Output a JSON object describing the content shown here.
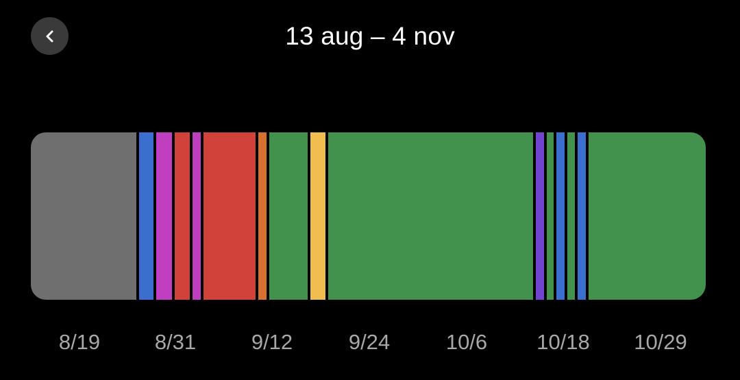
{
  "header": {
    "title": "13 aug – 4 nov",
    "back_icon": "chevron-left-icon"
  },
  "timeline": {
    "segments": [
      {
        "color": "#6f6f6f",
        "start": 0.0,
        "end": 0.156
      },
      {
        "color": "#3a6fd0",
        "start": 0.16,
        "end": 0.182
      },
      {
        "color": "#c03fc0",
        "start": 0.186,
        "end": 0.209
      },
      {
        "color": "#d0423a",
        "start": 0.213,
        "end": 0.236
      },
      {
        "color": "#c03fc0",
        "start": 0.24,
        "end": 0.252
      },
      {
        "color": "#d0423a",
        "start": 0.256,
        "end": 0.333
      },
      {
        "color": "#d7712f",
        "start": 0.337,
        "end": 0.349
      },
      {
        "color": "#42914c",
        "start": 0.353,
        "end": 0.41
      },
      {
        "color": "#efbe4e",
        "start": 0.414,
        "end": 0.437
      },
      {
        "color": "#42914c",
        "start": 0.441,
        "end": 0.744
      },
      {
        "color": "#7144d0",
        "start": 0.748,
        "end": 0.76
      },
      {
        "color": "#42914c",
        "start": 0.764,
        "end": 0.775
      },
      {
        "color": "#3a6fd0",
        "start": 0.779,
        "end": 0.791
      },
      {
        "color": "#42914c",
        "start": 0.795,
        "end": 0.806
      },
      {
        "color": "#3a6fd0",
        "start": 0.81,
        "end": 0.822
      },
      {
        "color": "#42914c",
        "start": 0.826,
        "end": 1.0
      }
    ]
  },
  "axis": {
    "labels": [
      "8/19",
      "8/31",
      "9/12",
      "9/24",
      "10/6",
      "10/18",
      "10/29"
    ]
  }
}
